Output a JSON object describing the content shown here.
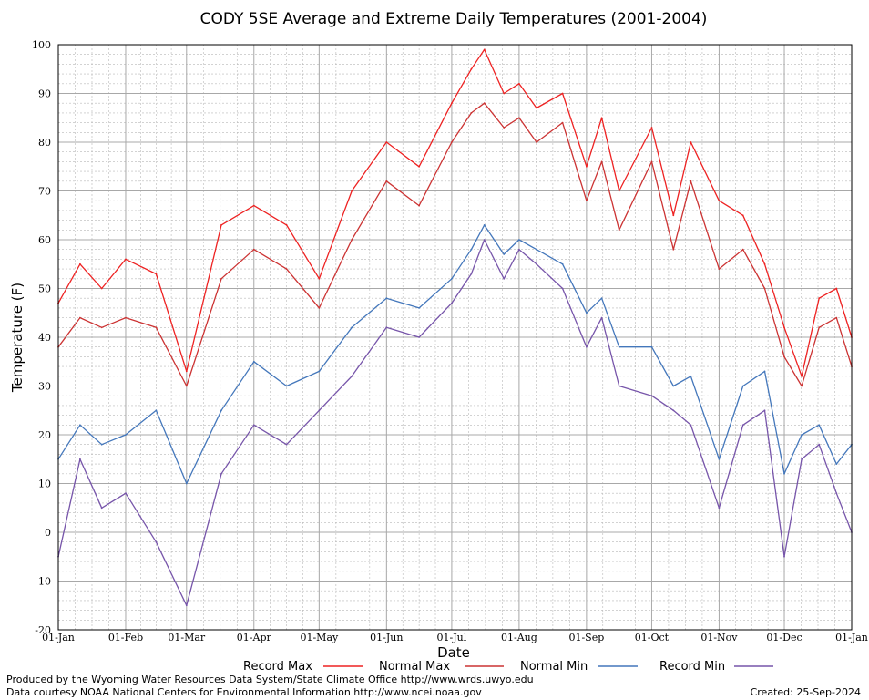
{
  "chart_data": {
    "type": "line",
    "title": "CODY 5SE Average and Extreme Daily Temperatures (2001-2004)",
    "xlabel": "Date",
    "ylabel": "Temperature (F)",
    "ylim": [
      -20,
      100
    ],
    "yticks": [
      -20,
      -10,
      0,
      10,
      20,
      30,
      40,
      50,
      60,
      70,
      80,
      90,
      100
    ],
    "xticks": [
      "01-Jan",
      "01-Feb",
      "01-Mar",
      "01-Apr",
      "01-May",
      "01-Jun",
      "01-Jul",
      "01-Aug",
      "01-Sep",
      "01-Oct",
      "01-Nov",
      "01-Dec",
      "01-Jan"
    ],
    "xtick_days": [
      0,
      31,
      59,
      90,
      120,
      151,
      181,
      212,
      243,
      273,
      304,
      334,
      365
    ],
    "grid": true,
    "legend_position": "bottom",
    "series": [
      {
        "name": "Record Max",
        "color": "#ee2222",
        "x": [
          0,
          10,
          20,
          31,
          45,
          59,
          75,
          90,
          105,
          120,
          135,
          151,
          166,
          181,
          190,
          196,
          205,
          212,
          220,
          232,
          243,
          250,
          258,
          273,
          283,
          291,
          304,
          315,
          325,
          334,
          342,
          350,
          358,
          365
        ],
        "values": [
          47,
          55,
          50,
          56,
          53,
          33,
          63,
          67,
          63,
          52,
          70,
          80,
          75,
          88,
          95,
          99,
          90,
          92,
          87,
          90,
          75,
          85,
          70,
          83,
          65,
          80,
          68,
          65,
          55,
          42,
          32,
          48,
          50,
          40
        ]
      },
      {
        "name": "Normal Max",
        "color": "#cc3333",
        "x": [
          0,
          10,
          20,
          31,
          45,
          59,
          75,
          90,
          105,
          120,
          135,
          151,
          166,
          181,
          190,
          196,
          205,
          212,
          220,
          232,
          243,
          250,
          258,
          273,
          283,
          291,
          304,
          315,
          325,
          334,
          342,
          350,
          358,
          365
        ],
        "values": [
          38,
          44,
          42,
          44,
          42,
          30,
          52,
          58,
          54,
          46,
          60,
          72,
          67,
          80,
          86,
          88,
          83,
          85,
          80,
          84,
          68,
          76,
          62,
          76,
          58,
          72,
          54,
          58,
          50,
          36,
          30,
          42,
          44,
          34
        ]
      },
      {
        "name": "Normal Min",
        "color": "#4477bb",
        "x": [
          0,
          10,
          20,
          31,
          45,
          59,
          75,
          90,
          105,
          120,
          135,
          151,
          166,
          181,
          190,
          196,
          205,
          212,
          220,
          232,
          243,
          250,
          258,
          273,
          283,
          291,
          304,
          315,
          325,
          334,
          342,
          350,
          358,
          365
        ],
        "values": [
          15,
          22,
          18,
          20,
          25,
          10,
          25,
          35,
          30,
          33,
          42,
          48,
          46,
          52,
          58,
          63,
          57,
          60,
          58,
          55,
          45,
          48,
          38,
          38,
          30,
          32,
          15,
          30,
          33,
          12,
          20,
          22,
          14,
          18
        ]
      },
      {
        "name": "Record Min",
        "color": "#7755aa",
        "x": [
          0,
          10,
          20,
          31,
          45,
          59,
          75,
          90,
          105,
          120,
          135,
          151,
          166,
          181,
          190,
          196,
          205,
          212,
          220,
          232,
          243,
          250,
          258,
          273,
          283,
          291,
          304,
          315,
          325,
          334,
          342,
          350,
          358,
          365
        ],
        "values": [
          -5,
          15,
          5,
          8,
          -2,
          -15,
          12,
          22,
          18,
          25,
          32,
          42,
          40,
          47,
          53,
          60,
          52,
          58,
          55,
          50,
          38,
          44,
          30,
          28,
          25,
          22,
          5,
          22,
          25,
          -5,
          15,
          18,
          8,
          0
        ]
      }
    ]
  },
  "legend": {
    "record_max": "Record Max",
    "normal_max": "Normal Max",
    "normal_min": "Normal Min",
    "record_min": "Record Min"
  },
  "footer": {
    "line1": "Produced by the Wyoming Water Resources Data System/State Climate Office http://www.wrds.uwyo.edu",
    "line2": "Data courtesy NOAA National Centers for Environmental Information http://www.ncei.noaa.gov",
    "created": "Created: 25-Sep-2024"
  }
}
